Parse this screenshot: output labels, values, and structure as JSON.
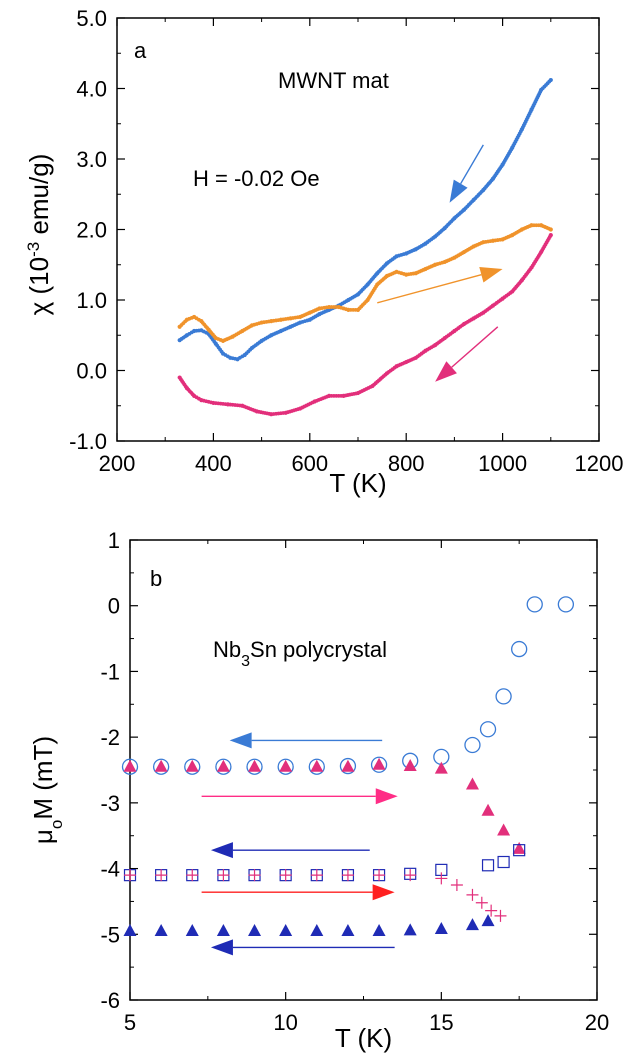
{
  "chart_data": [
    {
      "panel_label": "a",
      "type": "scatter",
      "annotations": [
        "MWNT mat",
        "H = -0.02 Oe"
      ],
      "xlabel": "T  (K)",
      "ylabel_parts": [
        "χ (10",
        "-3",
        " emu/g)"
      ],
      "xlim": [
        200,
        1200
      ],
      "ylim": [
        -1.0,
        5.0
      ],
      "x_ticks": [
        200,
        400,
        600,
        800,
        1000,
        1200
      ],
      "x_tick_labels": [
        "200",
        "400",
        "600",
        "800",
        "1000",
        "1200"
      ],
      "y_ticks": [
        -1,
        0,
        1,
        2,
        3,
        4,
        5
      ],
      "y_tick_labels": [
        "-1.0",
        "0.0",
        "1.0",
        "2.0",
        "3.0",
        "4.0",
        "5.0"
      ],
      "grid": false,
      "series": [
        {
          "color": "#3a7bd5",
          "direction": "cooling",
          "points": [
            [
              330,
              0.43
            ],
            [
              345,
              0.5
            ],
            [
              360,
              0.56
            ],
            [
              375,
              0.57
            ],
            [
              390,
              0.52
            ],
            [
              405,
              0.38
            ],
            [
              420,
              0.24
            ],
            [
              435,
              0.18
            ],
            [
              450,
              0.16
            ],
            [
              465,
              0.22
            ],
            [
              480,
              0.32
            ],
            [
              500,
              0.42
            ],
            [
              520,
              0.5
            ],
            [
              540,
              0.56
            ],
            [
              560,
              0.62
            ],
            [
              580,
              0.68
            ],
            [
              600,
              0.72
            ],
            [
              620,
              0.8
            ],
            [
              640,
              0.86
            ],
            [
              660,
              0.92
            ],
            [
              680,
              1.0
            ],
            [
              700,
              1.08
            ],
            [
              720,
              1.22
            ],
            [
              740,
              1.38
            ],
            [
              760,
              1.52
            ],
            [
              780,
              1.62
            ],
            [
              800,
              1.66
            ],
            [
              820,
              1.72
            ],
            [
              840,
              1.8
            ],
            [
              860,
              1.9
            ],
            [
              880,
              2.02
            ],
            [
              900,
              2.16
            ],
            [
              920,
              2.28
            ],
            [
              940,
              2.42
            ],
            [
              960,
              2.56
            ],
            [
              980,
              2.72
            ],
            [
              1000,
              2.92
            ],
            [
              1020,
              3.16
            ],
            [
              1040,
              3.42
            ],
            [
              1060,
              3.7
            ],
            [
              1080,
              3.98
            ],
            [
              1100,
              4.12
            ]
          ]
        },
        {
          "color": "#f0932b",
          "direction": "heating",
          "points": [
            [
              330,
              0.62
            ],
            [
              345,
              0.72
            ],
            [
              360,
              0.76
            ],
            [
              375,
              0.7
            ],
            [
              390,
              0.58
            ],
            [
              405,
              0.46
            ],
            [
              420,
              0.42
            ],
            [
              440,
              0.48
            ],
            [
              460,
              0.56
            ],
            [
              480,
              0.64
            ],
            [
              500,
              0.68
            ],
            [
              520,
              0.7
            ],
            [
              540,
              0.72
            ],
            [
              560,
              0.74
            ],
            [
              580,
              0.76
            ],
            [
              600,
              0.82
            ],
            [
              620,
              0.88
            ],
            [
              640,
              0.9
            ],
            [
              660,
              0.9
            ],
            [
              680,
              0.86
            ],
            [
              700,
              0.86
            ],
            [
              720,
              1.0
            ],
            [
              740,
              1.22
            ],
            [
              760,
              1.34
            ],
            [
              780,
              1.4
            ],
            [
              800,
              1.36
            ],
            [
              820,
              1.38
            ],
            [
              840,
              1.44
            ],
            [
              860,
              1.5
            ],
            [
              880,
              1.54
            ],
            [
              900,
              1.6
            ],
            [
              920,
              1.68
            ],
            [
              940,
              1.76
            ],
            [
              960,
              1.82
            ],
            [
              980,
              1.84
            ],
            [
              1000,
              1.86
            ],
            [
              1020,
              1.92
            ],
            [
              1040,
              2.0
            ],
            [
              1060,
              2.06
            ],
            [
              1080,
              2.06
            ],
            [
              1100,
              2.0
            ]
          ]
        },
        {
          "color": "#e22f7b",
          "direction": "cooling",
          "points": [
            [
              330,
              -0.1
            ],
            [
              345,
              -0.25
            ],
            [
              360,
              -0.36
            ],
            [
              375,
              -0.42
            ],
            [
              400,
              -0.46
            ],
            [
              430,
              -0.48
            ],
            [
              460,
              -0.5
            ],
            [
              490,
              -0.58
            ],
            [
              520,
              -0.62
            ],
            [
              550,
              -0.6
            ],
            [
              580,
              -0.54
            ],
            [
              610,
              -0.44
            ],
            [
              640,
              -0.36
            ],
            [
              670,
              -0.36
            ],
            [
              700,
              -0.32
            ],
            [
              730,
              -0.22
            ],
            [
              760,
              -0.04
            ],
            [
              780,
              0.06
            ],
            [
              800,
              0.12
            ],
            [
              820,
              0.18
            ],
            [
              840,
              0.28
            ],
            [
              860,
              0.36
            ],
            [
              880,
              0.46
            ],
            [
              900,
              0.56
            ],
            [
              920,
              0.66
            ],
            [
              940,
              0.74
            ],
            [
              960,
              0.82
            ],
            [
              980,
              0.92
            ],
            [
              1000,
              1.02
            ],
            [
              1020,
              1.12
            ],
            [
              1040,
              1.28
            ],
            [
              1060,
              1.46
            ],
            [
              1080,
              1.68
            ],
            [
              1100,
              1.92
            ]
          ]
        }
      ],
      "arrows": [
        {
          "color": "#3a7bd5",
          "from": [
            960,
            3.2
          ],
          "to": [
            890,
            2.38
          ]
        },
        {
          "color": "#f0932b",
          "from": [
            740,
            0.96
          ],
          "to": [
            1000,
            1.44
          ]
        },
        {
          "color": "#e22f7b",
          "from": [
            990,
            0.62
          ],
          "to": [
            860,
            -0.16
          ]
        }
      ]
    },
    {
      "panel_label": "b",
      "type": "scatter",
      "annotations": [
        "Nb",
        "3",
        "Sn polycrystal"
      ],
      "xlabel": "T  (K)",
      "ylabel_parts": [
        "μ",
        "o",
        "M  (mT)"
      ],
      "xlim": [
        5,
        20
      ],
      "ylim": [
        -6,
        1
      ],
      "x_ticks": [
        5,
        10,
        15,
        20
      ],
      "x_tick_labels": [
        "5",
        "10",
        "15",
        "20"
      ],
      "y_ticks": [
        -6,
        -5,
        -4,
        -3,
        -2,
        -1,
        0,
        1
      ],
      "y_tick_labels": [
        "-6",
        "-5",
        "-4",
        "-3",
        "-2",
        "-1",
        "0",
        "1"
      ],
      "grid": false,
      "series": [
        {
          "marker": "open-circle",
          "color": "#3a7bd5",
          "points": [
            [
              5,
              -2.45
            ],
            [
              6,
              -2.45
            ],
            [
              7,
              -2.45
            ],
            [
              8,
              -2.45
            ],
            [
              9,
              -2.45
            ],
            [
              10,
              -2.45
            ],
            [
              11,
              -2.45
            ],
            [
              12,
              -2.44
            ],
            [
              13,
              -2.42
            ],
            [
              14,
              -2.36
            ],
            [
              15,
              -2.3
            ],
            [
              16,
              -2.12
            ],
            [
              16.5,
              -1.88
            ],
            [
              17,
              -1.38
            ],
            [
              17.5,
              -0.66
            ],
            [
              18,
              0.02
            ],
            [
              19,
              0.02
            ]
          ]
        },
        {
          "marker": "filled-triangle",
          "color": "#e22f7b",
          "points": [
            [
              5,
              -2.45
            ],
            [
              6,
              -2.45
            ],
            [
              7,
              -2.45
            ],
            [
              8,
              -2.45
            ],
            [
              9,
              -2.45
            ],
            [
              10,
              -2.45
            ],
            [
              11,
              -2.45
            ],
            [
              12,
              -2.45
            ],
            [
              13,
              -2.42
            ],
            [
              14,
              -2.44
            ],
            [
              15,
              -2.48
            ],
            [
              16,
              -2.72
            ],
            [
              16.5,
              -3.12
            ],
            [
              17,
              -3.42
            ],
            [
              17.5,
              -3.7
            ]
          ]
        },
        {
          "marker": "open-square",
          "color": "#1f2bb5",
          "points": [
            [
              5,
              -4.1
            ],
            [
              6,
              -4.1
            ],
            [
              7,
              -4.1
            ],
            [
              8,
              -4.1
            ],
            [
              9,
              -4.1
            ],
            [
              10,
              -4.1
            ],
            [
              11,
              -4.1
            ],
            [
              12,
              -4.1
            ],
            [
              13,
              -4.1
            ],
            [
              14,
              -4.08
            ],
            [
              15,
              -4.02
            ],
            [
              16.5,
              -3.95
            ],
            [
              17,
              -3.9
            ],
            [
              17.5,
              -3.72
            ]
          ]
        },
        {
          "marker": "plus",
          "color": "#e22f7b",
          "points": [
            [
              5,
              -4.1
            ],
            [
              6,
              -4.1
            ],
            [
              7,
              -4.1
            ],
            [
              8,
              -4.1
            ],
            [
              9,
              -4.1
            ],
            [
              10,
              -4.1
            ],
            [
              11,
              -4.1
            ],
            [
              12,
              -4.1
            ],
            [
              13,
              -4.1
            ],
            [
              14,
              -4.1
            ],
            [
              15,
              -4.15
            ],
            [
              15.5,
              -4.25
            ],
            [
              16,
              -4.4
            ],
            [
              16.3,
              -4.52
            ],
            [
              16.6,
              -4.64
            ],
            [
              16.9,
              -4.72
            ]
          ]
        },
        {
          "marker": "filled-triangle",
          "color": "#1f2bb5",
          "points": [
            [
              5,
              -4.95
            ],
            [
              6,
              -4.95
            ],
            [
              7,
              -4.95
            ],
            [
              8,
              -4.95
            ],
            [
              9,
              -4.95
            ],
            [
              10,
              -4.95
            ],
            [
              11,
              -4.95
            ],
            [
              12,
              -4.95
            ],
            [
              13,
              -4.95
            ],
            [
              14,
              -4.94
            ],
            [
              15,
              -4.92
            ],
            [
              16,
              -4.86
            ],
            [
              16.5,
              -4.8
            ]
          ]
        }
      ],
      "arrows": [
        {
          "color": "#3a7bd5",
          "from": [
            13.1,
            -2.05
          ],
          "to": [
            8.2,
            -2.05
          ]
        },
        {
          "color": "#ff2d86",
          "from": [
            7.3,
            -2.9
          ],
          "to": [
            13.6,
            -2.9
          ]
        },
        {
          "color": "#1f2bb5",
          "from": [
            12.7,
            -3.72
          ],
          "to": [
            7.6,
            -3.72
          ]
        },
        {
          "color": "#ff2020",
          "from": [
            7.3,
            -4.36
          ],
          "to": [
            13.5,
            -4.36
          ]
        },
        {
          "color": "#1f2bb5",
          "from": [
            13.5,
            -5.2
          ],
          "to": [
            7.6,
            -5.2
          ]
        }
      ]
    }
  ]
}
